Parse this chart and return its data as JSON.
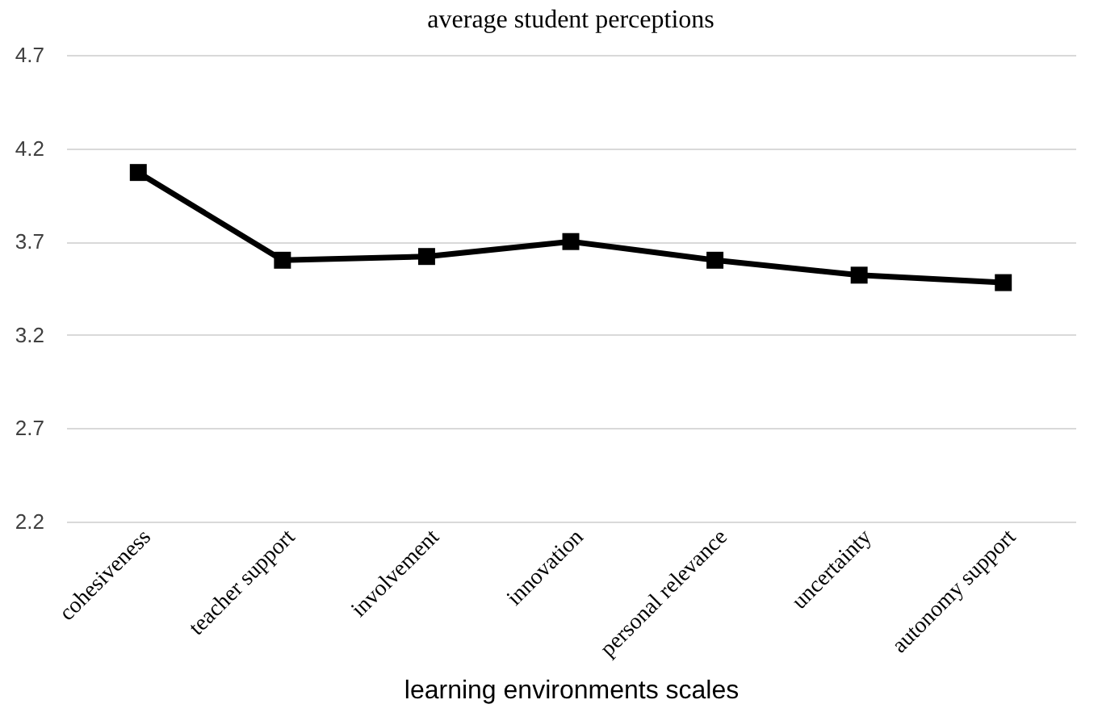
{
  "chart_data": {
    "type": "line",
    "title": "average student perceptions",
    "xlabel": "learning environments scales",
    "categories": [
      "cohesiveness",
      "teacher support",
      "involvement",
      "innovation",
      "personal relevance",
      "uncertainty",
      "autonomy support"
    ],
    "series": [
      {
        "color": "#000000",
        "values": [
          4.07,
          3.6,
          3.62,
          3.7,
          3.6,
          3.52,
          3.48
        ]
      }
    ],
    "ylim": [
      2.2,
      4.7
    ],
    "yticks": [
      2.2,
      2.7,
      3.2,
      3.7,
      4.2,
      4.7
    ],
    "grid": "y",
    "legend": false,
    "marker": "square",
    "line_style": "solid"
  }
}
